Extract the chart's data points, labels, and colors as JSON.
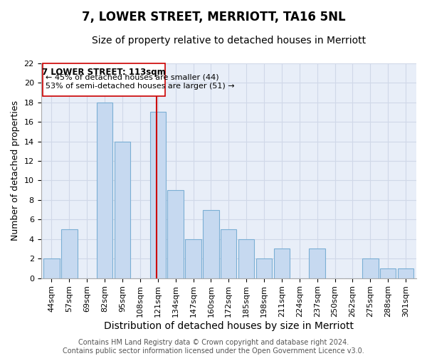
{
  "title": "7, LOWER STREET, MERRIOTT, TA16 5NL",
  "subtitle": "Size of property relative to detached houses in Merriott",
  "xlabel": "Distribution of detached houses by size in Merriott",
  "ylabel": "Number of detached properties",
  "bar_labels": [
    "44sqm",
    "57sqm",
    "69sqm",
    "82sqm",
    "95sqm",
    "108sqm",
    "121sqm",
    "134sqm",
    "147sqm",
    "160sqm",
    "172sqm",
    "185sqm",
    "198sqm",
    "211sqm",
    "224sqm",
    "237sqm",
    "250sqm",
    "262sqm",
    "275sqm",
    "288sqm",
    "301sqm"
  ],
  "bar_heights": [
    2,
    5,
    0,
    18,
    14,
    0,
    17,
    9,
    4,
    7,
    5,
    4,
    2,
    3,
    0,
    3,
    0,
    0,
    2,
    1,
    1
  ],
  "bar_color": "#c6d9f0",
  "bar_edge_color": "#7bafd4",
  "vline_x_idx": 6,
  "vline_color": "#cc0000",
  "ylim": [
    0,
    22
  ],
  "yticks": [
    0,
    2,
    4,
    6,
    8,
    10,
    12,
    14,
    16,
    18,
    20,
    22
  ],
  "annotation_title": "7 LOWER STREET: 113sqm",
  "annotation_line1": "← 45% of detached houses are smaller (44)",
  "annotation_line2": "53% of semi-detached houses are larger (51) →",
  "footer1": "Contains HM Land Registry data © Crown copyright and database right 2024.",
  "footer2": "Contains public sector information licensed under the Open Government Licence v3.0.",
  "title_fontsize": 12,
  "subtitle_fontsize": 10,
  "xlabel_fontsize": 10,
  "ylabel_fontsize": 9,
  "tick_fontsize": 8,
  "annotation_fontsize": 8.5,
  "footer_fontsize": 7,
  "grid_color": "#d0d8e8",
  "bg_color": "#e8eef8"
}
